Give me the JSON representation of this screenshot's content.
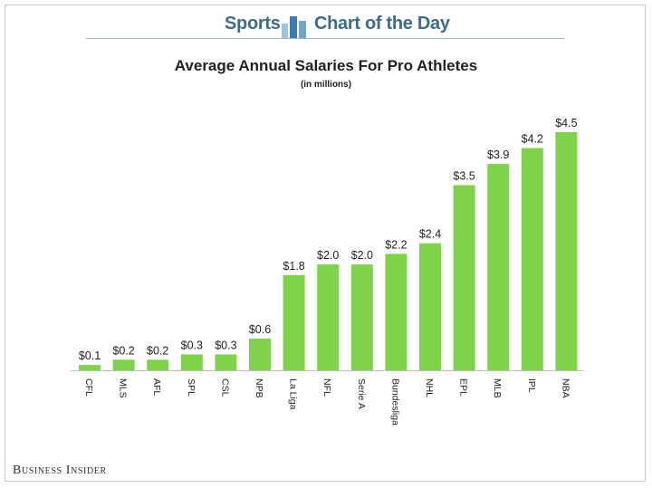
{
  "header": {
    "left_text": "Sports",
    "right_text": "Chart of the Day",
    "icon": "bar-chart-icon"
  },
  "brand": "Business Insider",
  "colors": {
    "bar": "#7ed348",
    "header_text": "#3d6c88",
    "axis": "#bfbfbf"
  },
  "chart_data": {
    "type": "bar",
    "title": "Average Annual Salaries For Pro Athletes",
    "subtitle": "(in millions)",
    "categories": [
      "CFL",
      "MLS",
      "AFL",
      "SPL",
      "CSL",
      "NPB",
      "La Liga",
      "NFL",
      "Serie A",
      "Bundesliga",
      "NHL",
      "EPL",
      "MLB",
      "IPL",
      "NBA"
    ],
    "values": [
      0.1,
      0.2,
      0.2,
      0.3,
      0.3,
      0.6,
      1.8,
      2.0,
      2.0,
      2.2,
      2.4,
      3.5,
      3.9,
      4.2,
      4.5
    ],
    "value_labels": [
      "$0.1",
      "$0.2",
      "$0.2",
      "$0.3",
      "$0.3",
      "$0.6",
      "$1.8",
      "$2.0",
      "$2.0",
      "$2.2",
      "$2.4",
      "$3.5",
      "$3.9",
      "$4.2",
      "$4.5"
    ],
    "ylim": [
      0,
      4.5
    ],
    "grid": false,
    "legend": "none"
  }
}
